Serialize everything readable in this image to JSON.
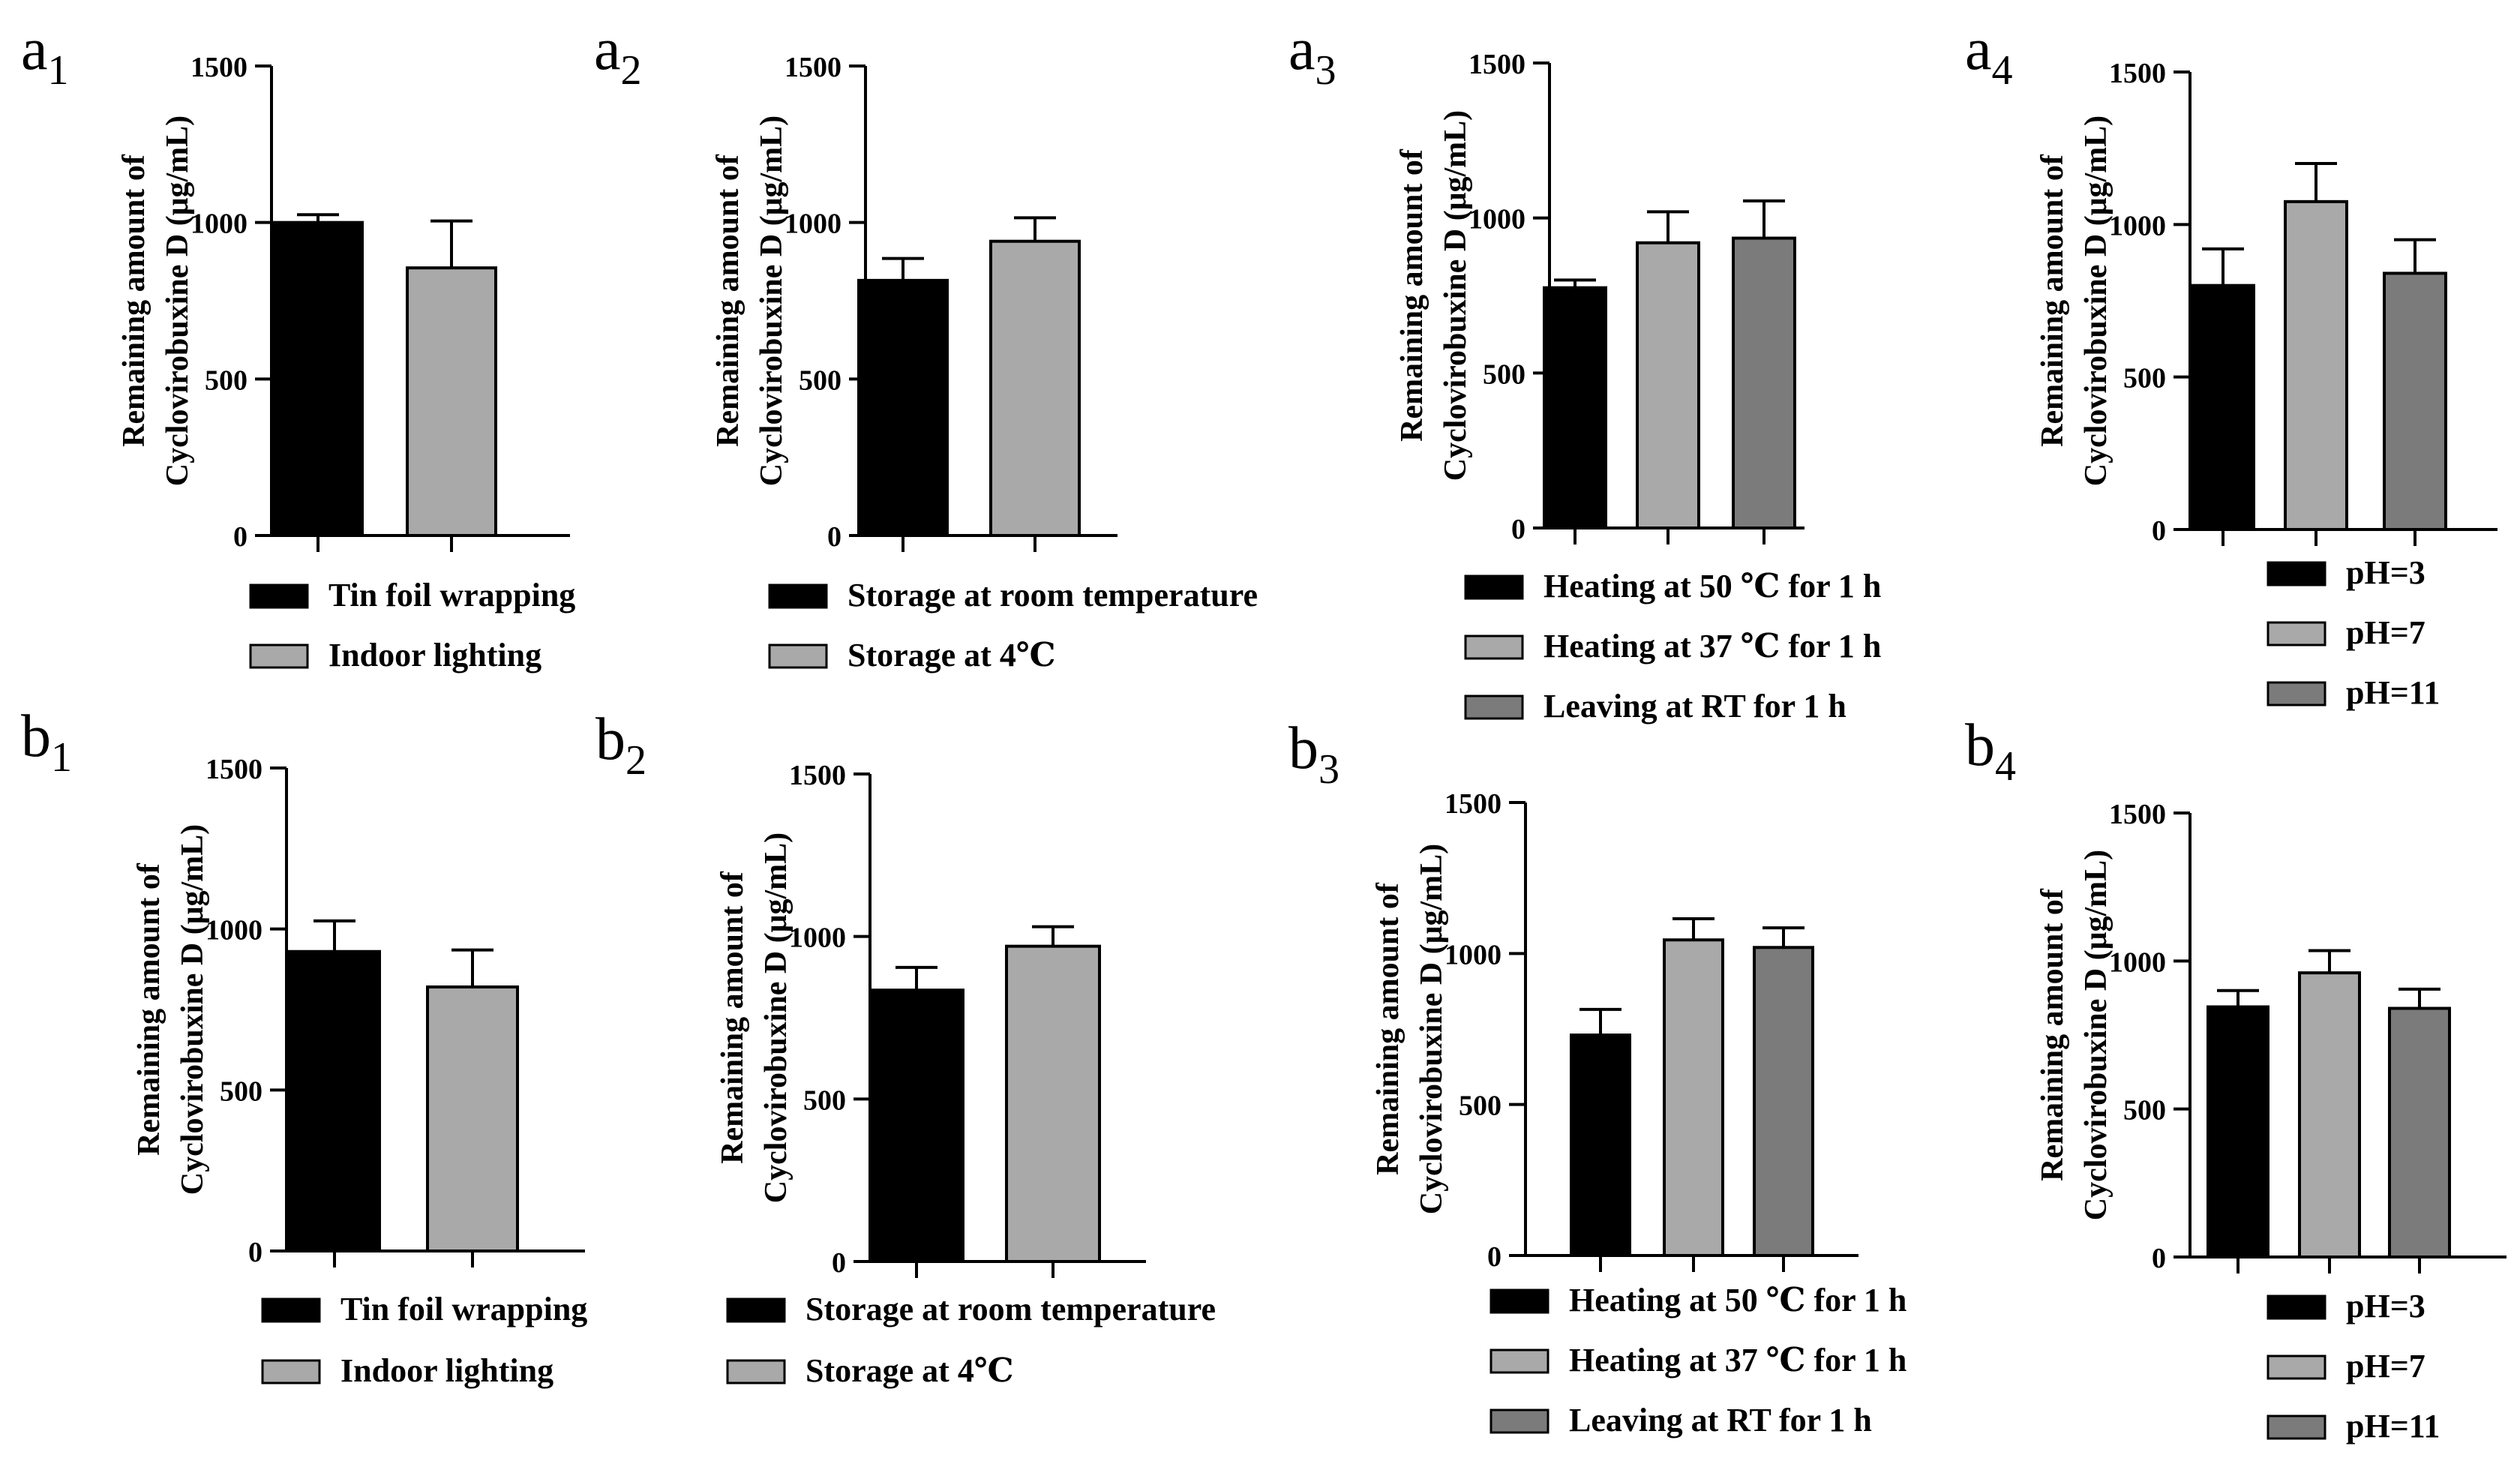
{
  "figure": {
    "colors": {
      "black": "#000000",
      "light_gray": "#a9a9a9",
      "dark_gray": "#7b7b7b"
    },
    "y_label_line1": "Remaining amount of",
    "y_label_line2": "Cyclovirobuxine D (μg/mL)"
  },
  "chart_data": [
    {
      "id": "a1",
      "letter": "a",
      "sub": "1",
      "type": "bar",
      "ylim": [
        0,
        1500
      ],
      "yticks": [
        0,
        500,
        1000,
        1500
      ],
      "series": [
        {
          "name": "Tin foil wrapping",
          "value": 1000,
          "error": 25,
          "color": "#000000"
        },
        {
          "name": "Indoor lighting",
          "value": 855,
          "error": 150,
          "color": "#a9a9a9"
        }
      ]
    },
    {
      "id": "a2",
      "letter": "a",
      "sub": "2",
      "type": "bar",
      "ylim": [
        0,
        1500
      ],
      "yticks": [
        0,
        500,
        1000,
        1500
      ],
      "series": [
        {
          "name": "Storage at room temperature",
          "value": 815,
          "error": 70,
          "color": "#000000"
        },
        {
          "name": "Storage at 4℃",
          "value": 940,
          "error": 75,
          "color": "#a9a9a9"
        }
      ]
    },
    {
      "id": "a3",
      "letter": "a",
      "sub": "3",
      "type": "bar",
      "ylim": [
        0,
        1500
      ],
      "yticks": [
        0,
        500,
        1000,
        1500
      ],
      "series": [
        {
          "name": "Heating at 50 ℃ for 1 h",
          "value": 775,
          "error": 25,
          "color": "#000000"
        },
        {
          "name": "Heating at 37 ℃ for 1 h",
          "value": 920,
          "error": 100,
          "color": "#a9a9a9"
        },
        {
          "name": "Leaving at RT for 1 h",
          "value": 935,
          "error": 120,
          "color": "#7b7b7b"
        }
      ]
    },
    {
      "id": "a4",
      "letter": "a",
      "sub": "4",
      "type": "bar",
      "ylim": [
        0,
        1500
      ],
      "yticks": [
        0,
        500,
        1000,
        1500
      ],
      "series": [
        {
          "name": "pH=3",
          "value": 800,
          "error": 120,
          "color": "#000000"
        },
        {
          "name": "pH=7",
          "value": 1075,
          "error": 125,
          "color": "#a9a9a9"
        },
        {
          "name": "pH=11",
          "value": 840,
          "error": 110,
          "color": "#7b7b7b"
        }
      ]
    },
    {
      "id": "b1",
      "letter": "b",
      "sub": "1",
      "type": "bar",
      "ylim": [
        0,
        1500
      ],
      "yticks": [
        0,
        500,
        1000,
        1500
      ],
      "series": [
        {
          "name": "Tin foil wrapping",
          "value": 930,
          "error": 95,
          "color": "#000000"
        },
        {
          "name": "Indoor lighting",
          "value": 820,
          "error": 115,
          "color": "#a9a9a9"
        }
      ]
    },
    {
      "id": "b2",
      "letter": "b",
      "sub": "2",
      "type": "bar",
      "ylim": [
        0,
        1500
      ],
      "yticks": [
        0,
        500,
        1000,
        1500
      ],
      "series": [
        {
          "name": "Storage at room temperature",
          "value": 835,
          "error": 70,
          "color": "#000000"
        },
        {
          "name": "Storage at 4℃",
          "value": 970,
          "error": 60,
          "color": "#a9a9a9"
        }
      ]
    },
    {
      "id": "b3",
      "letter": "b",
      "sub": "3",
      "type": "bar",
      "ylim": [
        0,
        1500
      ],
      "yticks": [
        0,
        500,
        1000,
        1500
      ],
      "series": [
        {
          "name": "Heating at 50 ℃ for 1 h",
          "value": 730,
          "error": 85,
          "color": "#000000"
        },
        {
          "name": "Heating at 37 ℃ for 1 h",
          "value": 1045,
          "error": 70,
          "color": "#a9a9a9"
        },
        {
          "name": "Leaving at RT for 1 h",
          "value": 1020,
          "error": 65,
          "color": "#7b7b7b"
        }
      ]
    },
    {
      "id": "b4",
      "letter": "b",
      "sub": "4",
      "type": "bar",
      "ylim": [
        0,
        1500
      ],
      "yticks": [
        0,
        500,
        1000,
        1500
      ],
      "series": [
        {
          "name": "pH=3",
          "value": 845,
          "error": 55,
          "color": "#000000"
        },
        {
          "name": "pH=7",
          "value": 960,
          "error": 75,
          "color": "#a9a9a9"
        },
        {
          "name": "pH=11",
          "value": 840,
          "error": 65,
          "color": "#7b7b7b"
        }
      ]
    }
  ]
}
